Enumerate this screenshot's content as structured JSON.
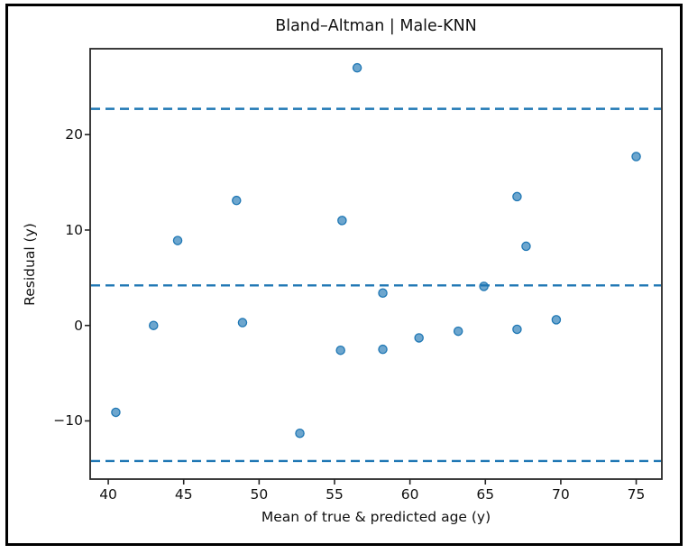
{
  "figure": {
    "background": "#ffffff",
    "frame_color": "#000000",
    "text_color": "#111111",
    "spine_color": "#262626"
  },
  "chart_data": {
    "type": "scatter",
    "title": "Bland–Altman | Male-KNN",
    "xlabel": "Mean of true & predicted age (y)",
    "ylabel": "Residual (y)",
    "xlim": [
      38.8,
      76.7
    ],
    "ylim": [
      -16.1,
      29.0
    ],
    "x_ticks": [
      40,
      45,
      50,
      55,
      60,
      65,
      70,
      75
    ],
    "y_ticks": [
      -10,
      0,
      10,
      20
    ],
    "grid": false,
    "legend": "none",
    "marker_color": "#1f77b4",
    "marker_fill_opacity": 0.65,
    "series": [
      {
        "name": "residual-points",
        "marker": "circle",
        "color": "#1f77b4",
        "points": [
          [
            40.5,
            -9.1
          ],
          [
            43.0,
            0.0
          ],
          [
            44.6,
            8.9
          ],
          [
            48.5,
            13.1
          ],
          [
            48.9,
            0.3
          ],
          [
            52.7,
            -11.3
          ],
          [
            55.4,
            -2.6
          ],
          [
            55.5,
            11.0
          ],
          [
            56.5,
            27.0
          ],
          [
            58.2,
            3.4
          ],
          [
            58.2,
            -2.5
          ],
          [
            60.6,
            -1.3
          ],
          [
            63.2,
            -0.6
          ],
          [
            64.9,
            4.1
          ],
          [
            67.1,
            13.5
          ],
          [
            67.1,
            -0.4
          ],
          [
            67.7,
            8.3
          ],
          [
            69.7,
            0.6
          ],
          [
            75.0,
            17.7
          ]
        ]
      }
    ],
    "reference_lines": [
      {
        "name": "upper-limit-of-agreement-line",
        "y": 22.7,
        "style": "dashed",
        "color": "#1f77b4"
      },
      {
        "name": "mean-difference-line",
        "y": 4.2,
        "style": "dashed",
        "color": "#1f77b4"
      },
      {
        "name": "lower-limit-of-agreement-line",
        "y": -14.2,
        "style": "dashed",
        "color": "#1f77b4"
      }
    ]
  }
}
